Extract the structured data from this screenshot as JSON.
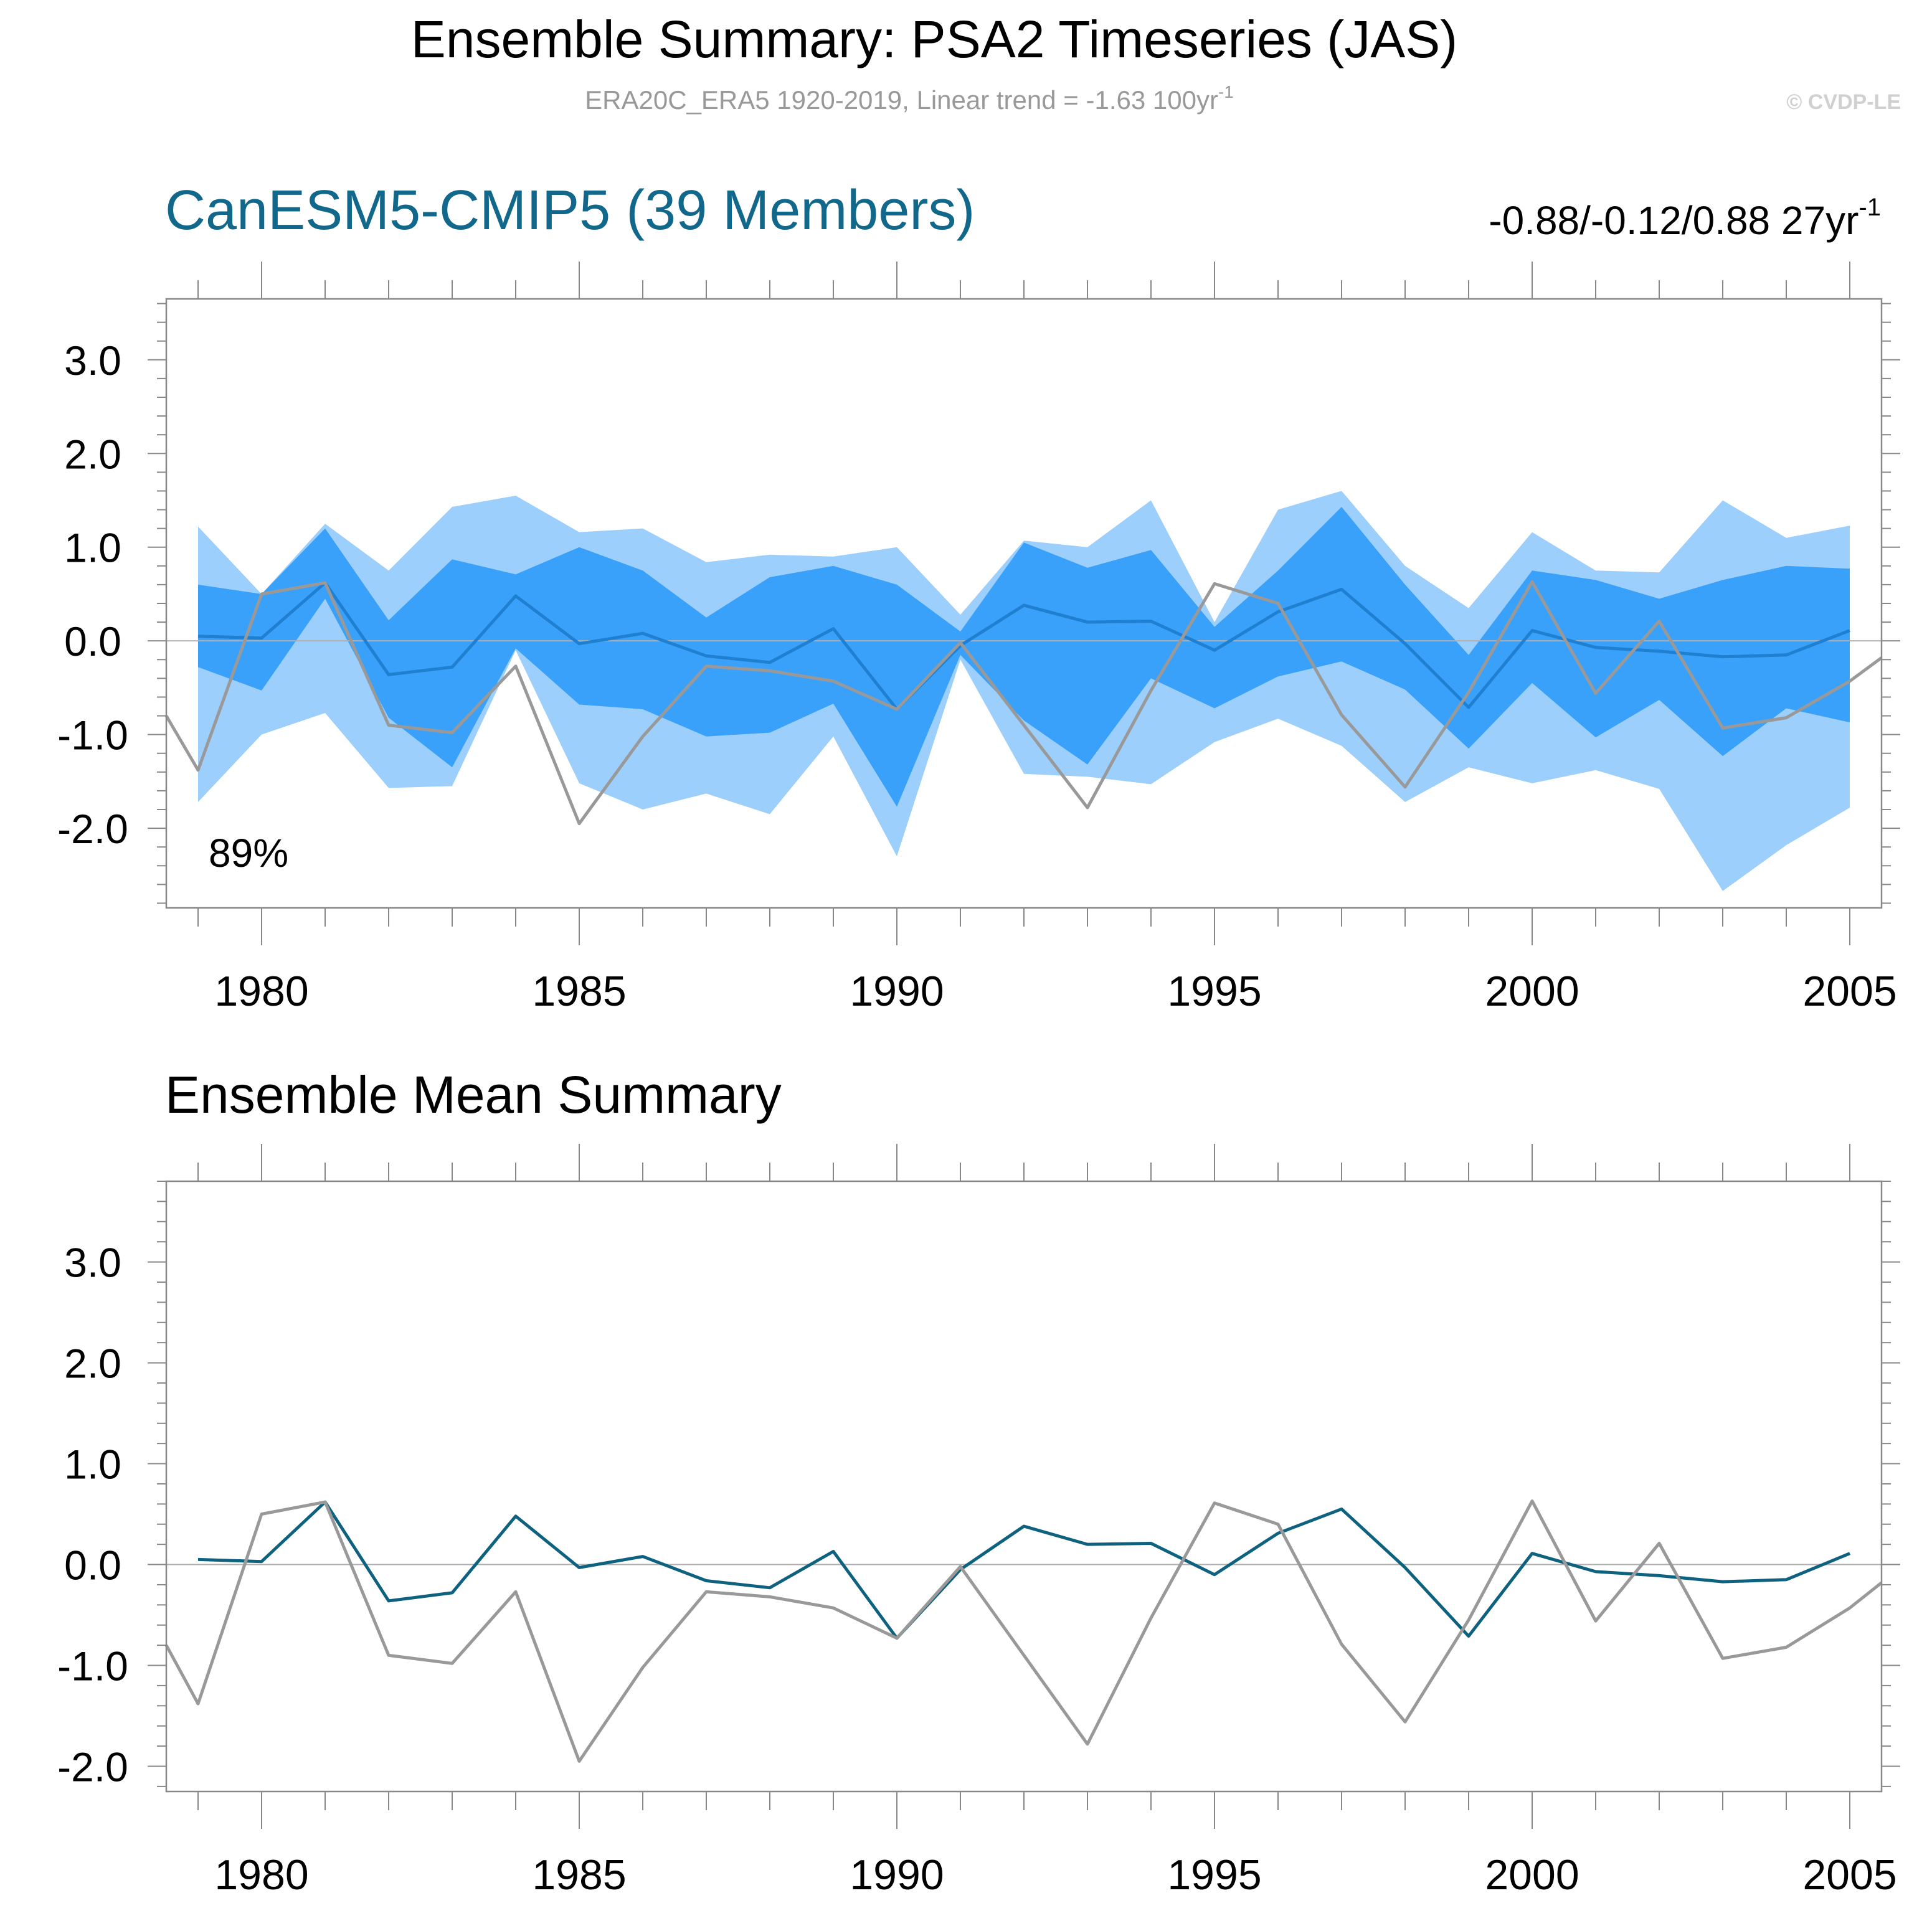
{
  "header": {
    "title": "Ensemble Summary: PSA2 Timeseries (JAS)",
    "subtitle_main": "ERA20C_ERA5 1920-2019, Linear trend = -1.63 100yr",
    "subtitle_sup": "-1",
    "copyright": "© CVDP-LE"
  },
  "colors": {
    "band_outer": "#9dcffc",
    "band_inner": "#3aa1fa",
    "ensemble_mean_top": "#1f7fd1",
    "ensemble_mean_bottom": "#0e627f",
    "observed": "#999999",
    "model_title": "#12688a",
    "axis": "#888888"
  },
  "chart_data": [
    {
      "type": "area",
      "title": "CanESM5-CMIP5 (39 Members)",
      "stats_main": "-0.88/-0.12/0.88 27yr",
      "stats_sup": "-1",
      "annotation": "89%",
      "xlim": [
        1978.5,
        2005.5
      ],
      "ylim": [
        -2.85,
        3.65
      ],
      "yticks": [
        -2.0,
        -1.0,
        0.0,
        1.0,
        2.0,
        3.0
      ],
      "ytick_labels": [
        "-2.0",
        "-1.0",
        "0.0",
        "1.0",
        "2.0",
        "3.0"
      ],
      "xticks": [
        1980,
        1985,
        1990,
        1995,
        2000,
        2005
      ],
      "xtick_labels": [
        "1980",
        "1985",
        "1990",
        "1995",
        "2000",
        "2005"
      ],
      "years": [
        1979,
        1980,
        1981,
        1982,
        1983,
        1984,
        1985,
        1986,
        1987,
        1988,
        1989,
        1990,
        1991,
        1992,
        1993,
        1994,
        1995,
        1996,
        1997,
        1998,
        1999,
        2000,
        2001,
        2002,
        2003,
        2004,
        2005
      ],
      "band_outer_upper": [
        1.22,
        0.5,
        1.25,
        0.75,
        1.43,
        1.55,
        1.16,
        1.2,
        0.84,
        0.92,
        0.9,
        1.0,
        0.28,
        1.07,
        1.0,
        1.5,
        0.2,
        1.4,
        1.6,
        0.8,
        0.35,
        1.16,
        0.75,
        0.73,
        1.5,
        1.1,
        1.23
      ],
      "band_outer_lower": [
        -1.72,
        -1.0,
        -0.77,
        -1.57,
        -1.55,
        -0.1,
        -1.52,
        -1.8,
        -1.63,
        -1.85,
        -1.02,
        -2.3,
        -0.2,
        -1.42,
        -1.45,
        -1.53,
        -1.08,
        -0.83,
        -1.12,
        -1.72,
        -1.35,
        -1.52,
        -1.38,
        -1.58,
        -2.67,
        -2.18,
        -1.78
      ],
      "band_inner_upper": [
        0.6,
        0.5,
        1.2,
        0.22,
        0.87,
        0.71,
        1.0,
        0.75,
        0.25,
        0.68,
        0.8,
        0.6,
        0.1,
        1.05,
        0.78,
        0.97,
        0.15,
        0.75,
        1.43,
        0.6,
        -0.15,
        0.75,
        0.65,
        0.45,
        0.65,
        0.8,
        0.77
      ],
      "band_inner_lower": [
        -0.28,
        -0.53,
        0.45,
        -0.82,
        -1.35,
        -0.08,
        -0.68,
        -0.73,
        -1.02,
        -0.98,
        -0.67,
        -1.77,
        -0.15,
        -0.85,
        -1.32,
        -0.4,
        -0.72,
        -0.38,
        -0.22,
        -0.52,
        -1.15,
        -0.45,
        -1.03,
        -0.63,
        -1.23,
        -0.72,
        -0.87
      ],
      "ensemble_mean": [
        0.05,
        0.03,
        0.62,
        -0.36,
        -0.28,
        0.48,
        -0.03,
        0.08,
        -0.16,
        -0.23,
        0.13,
        -0.73,
        -0.05,
        0.38,
        0.2,
        0.21,
        -0.1,
        0.31,
        0.55,
        -0.03,
        -0.71,
        0.11,
        -0.07,
        -0.11,
        -0.17,
        -0.15,
        0.11
      ],
      "observed_years": [
        1978.5,
        1979,
        1980,
        1981,
        1982,
        1983,
        1984,
        1985,
        1986,
        1987,
        1988,
        1989,
        1990,
        1991,
        1992,
        1993,
        1994,
        1995,
        1996,
        1997,
        1998,
        1999,
        2000,
        2001,
        2002,
        2003,
        2004,
        2005,
        2005.5
      ],
      "observed": [
        -0.8,
        -1.38,
        0.5,
        0.62,
        -0.9,
        -0.98,
        -0.27,
        -1.95,
        -1.02,
        -0.27,
        -0.32,
        -0.43,
        -0.73,
        -0.02,
        -0.9,
        -1.78,
        -0.53,
        0.61,
        0.4,
        -0.79,
        -1.56,
        -0.55,
        0.63,
        -0.56,
        0.21,
        -0.93,
        -0.82,
        -0.43,
        -0.18
      ]
    },
    {
      "type": "line",
      "title": "Ensemble Mean Summary",
      "xlim": [
        1978.5,
        2005.5
      ],
      "ylim": [
        -2.25,
        3.8
      ],
      "yticks": [
        -2.0,
        -1.0,
        0.0,
        1.0,
        2.0,
        3.0
      ],
      "ytick_labels": [
        "-2.0",
        "-1.0",
        "0.0",
        "1.0",
        "2.0",
        "3.0"
      ],
      "xticks": [
        1980,
        1985,
        1990,
        1995,
        2000,
        2005
      ],
      "xtick_labels": [
        "1980",
        "1985",
        "1990",
        "1995",
        "2000",
        "2005"
      ],
      "years": [
        1979,
        1980,
        1981,
        1982,
        1983,
        1984,
        1985,
        1986,
        1987,
        1988,
        1989,
        1990,
        1991,
        1992,
        1993,
        1994,
        1995,
        1996,
        1997,
        1998,
        1999,
        2000,
        2001,
        2002,
        2003,
        2004,
        2005
      ],
      "ensemble_mean": [
        0.05,
        0.03,
        0.62,
        -0.36,
        -0.28,
        0.48,
        -0.03,
        0.08,
        -0.16,
        -0.23,
        0.13,
        -0.73,
        -0.05,
        0.38,
        0.2,
        0.21,
        -0.1,
        0.31,
        0.55,
        -0.03,
        -0.71,
        0.11,
        -0.07,
        -0.11,
        -0.17,
        -0.15,
        0.11
      ],
      "observed_years": [
        1978.5,
        1979,
        1980,
        1981,
        1982,
        1983,
        1984,
        1985,
        1986,
        1987,
        1988,
        1989,
        1990,
        1991,
        1992,
        1993,
        1994,
        1995,
        1996,
        1997,
        1998,
        1999,
        2000,
        2001,
        2002,
        2003,
        2004,
        2005,
        2005.5
      ],
      "observed": [
        -0.8,
        -1.38,
        0.5,
        0.62,
        -0.9,
        -0.98,
        -0.27,
        -1.95,
        -1.02,
        -0.27,
        -0.32,
        -0.43,
        -0.73,
        -0.02,
        -0.9,
        -1.78,
        -0.53,
        0.61,
        0.4,
        -0.79,
        -1.56,
        -0.55,
        0.63,
        -0.56,
        0.21,
        -0.93,
        -0.82,
        -0.43,
        -0.18
      ]
    }
  ]
}
